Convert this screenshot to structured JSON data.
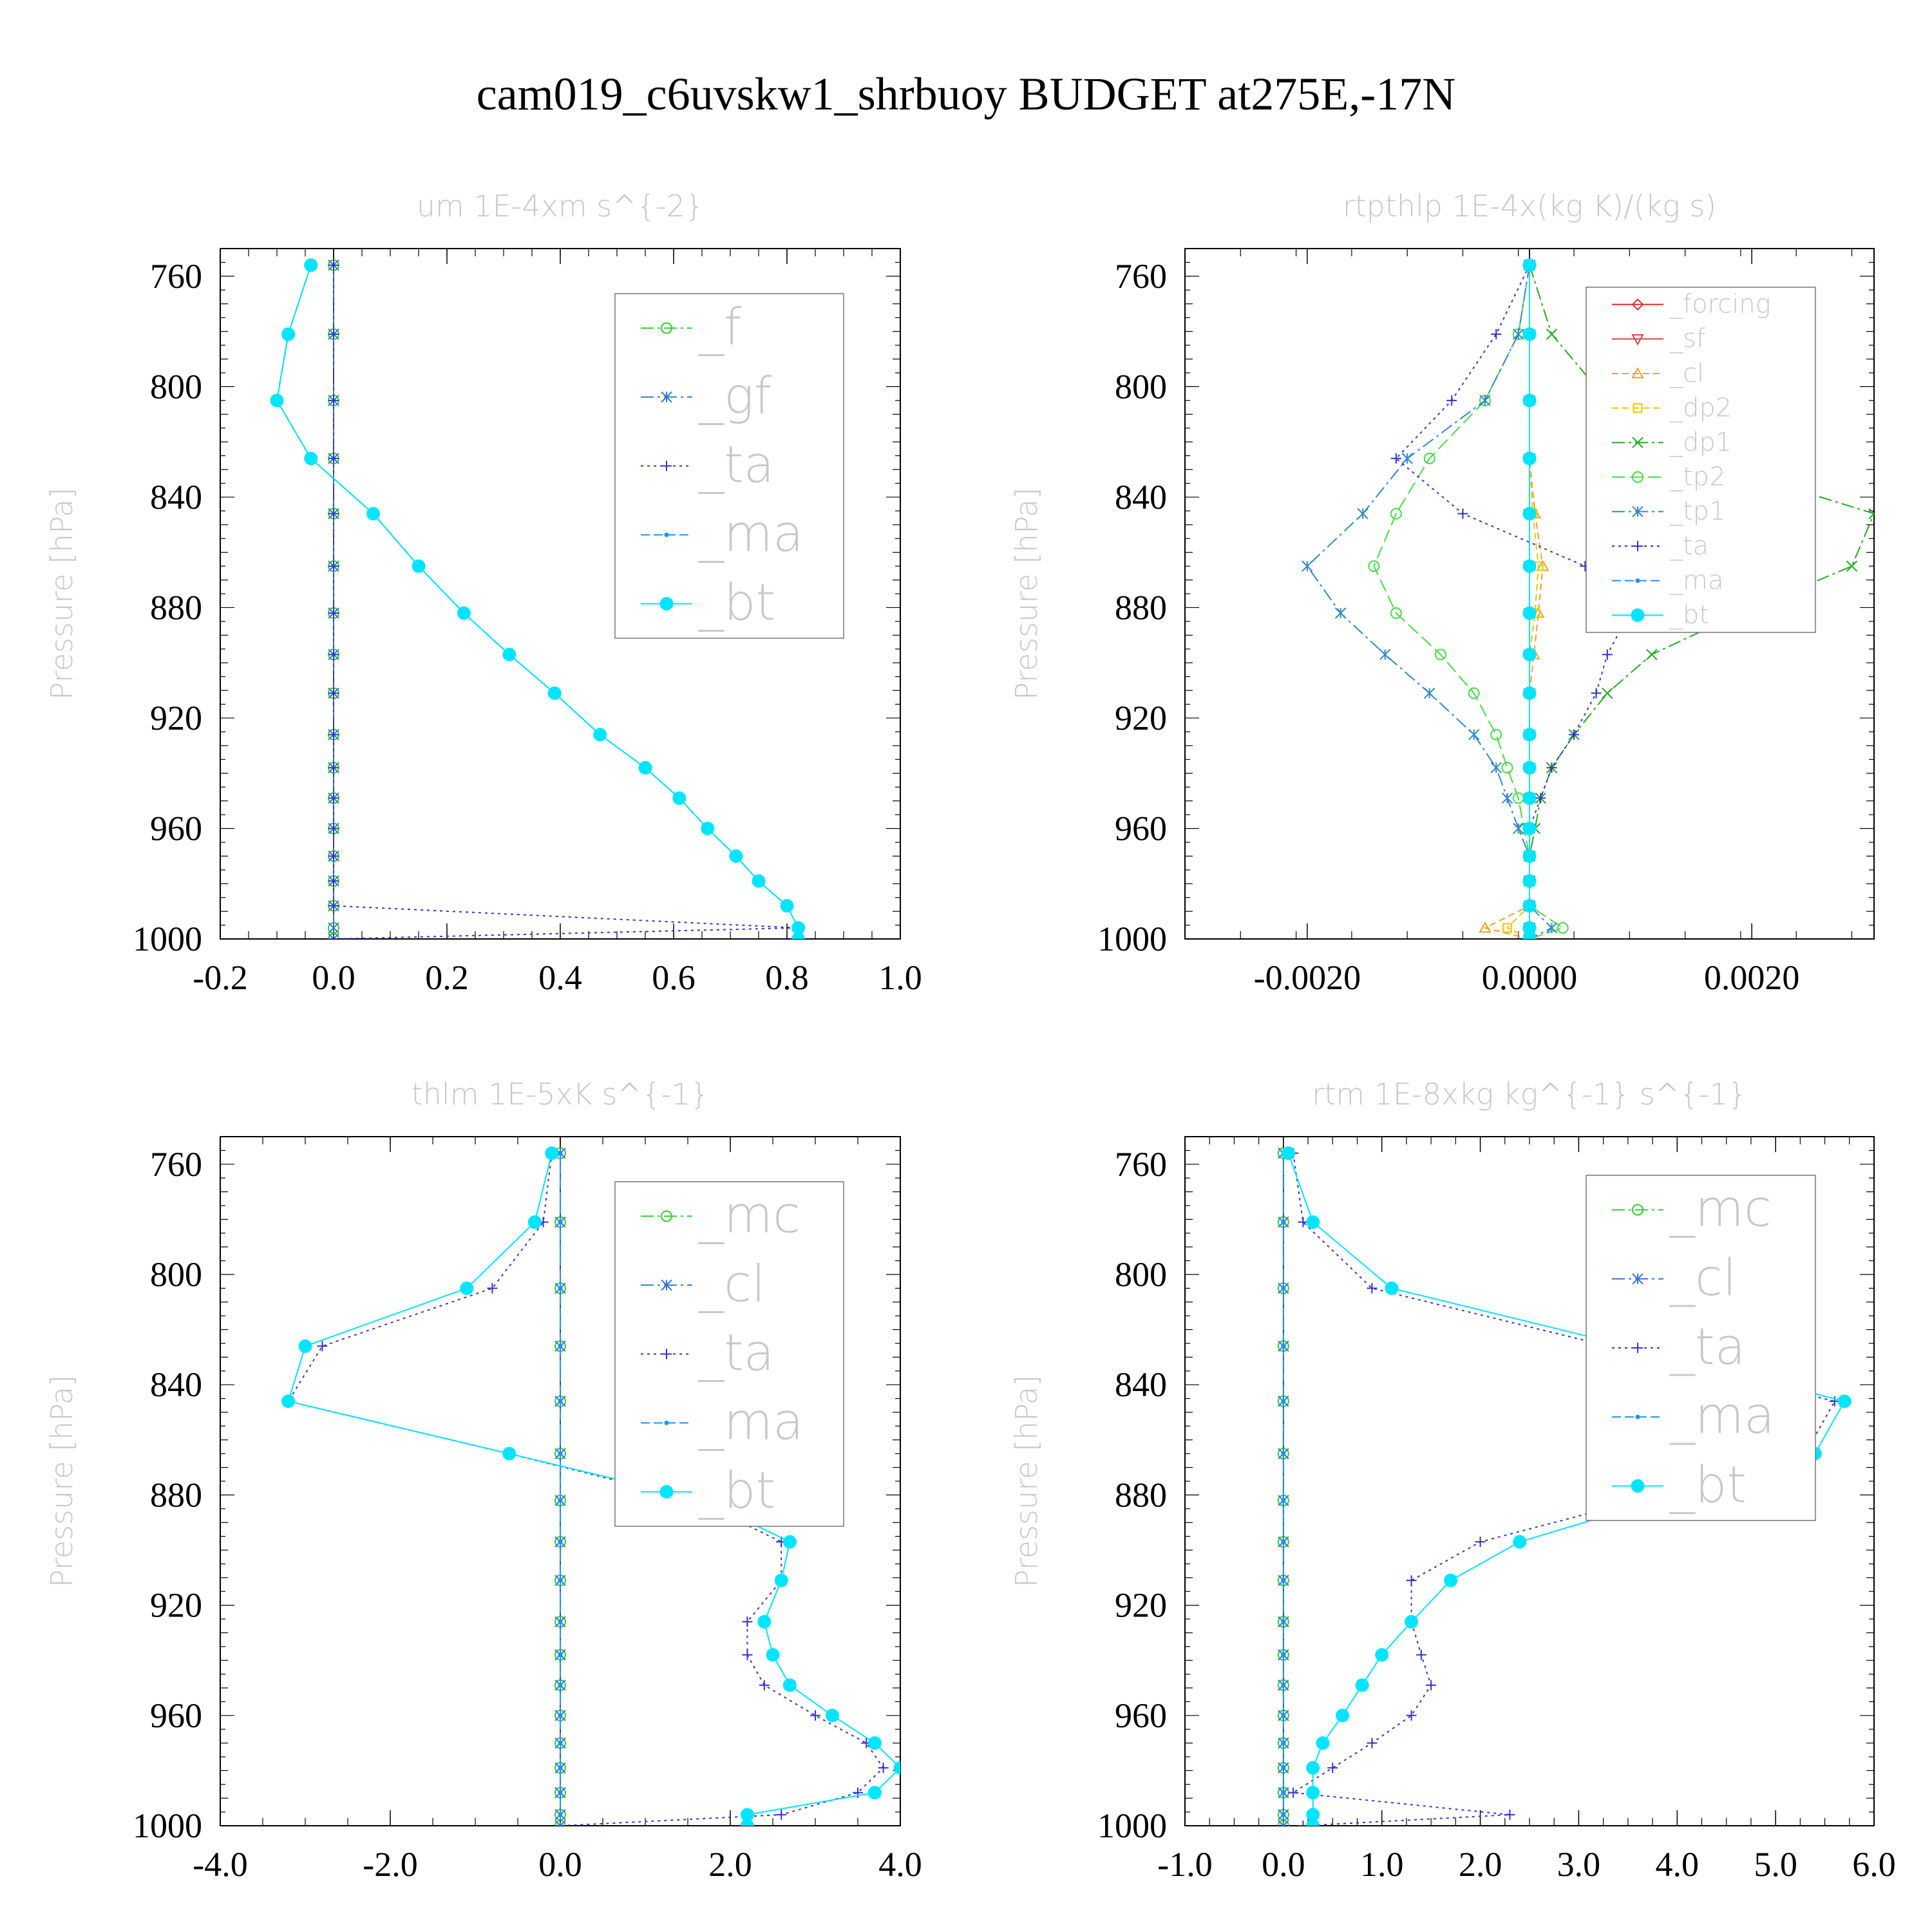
{
  "figure": {
    "title": "cam019_c6uvskw1_shrbuoy  BUDGET at275E,-17N"
  },
  "styles": {
    "_f": {
      "color": "#33cc33",
      "dash": "20,6,4,6",
      "marker": "circle"
    },
    "_gf": {
      "color": "#3377cc",
      "dash": "20,6,4,6",
      "marker": "asterisk"
    },
    "_ta": {
      "color": "#3333cc",
      "dash": "4,6",
      "marker": "plus"
    },
    "_ma": {
      "color": "#1e90ff",
      "dash": "14,6",
      "marker": "dot"
    },
    "_bt": {
      "color": "#00e5ff",
      "dash": "",
      "marker": "filled"
    },
    "_mc": {
      "color": "#33cc33",
      "dash": "20,6,4,6",
      "marker": "circle"
    },
    "_cl": {
      "color": "#3377cc",
      "dash": "20,6,4,6",
      "marker": "asterisk"
    },
    "_forcing": {
      "color": "#e03030",
      "dash": "",
      "marker": "diamond"
    },
    "_sf": {
      "color": "#e04040",
      "dash": "",
      "marker": "tridown"
    },
    "_cl_rtp": {
      "color": "#f0a030",
      "dash": "10,6",
      "marker": "triup"
    },
    "_dp2": {
      "color": "#e8c800",
      "dash": "10,6",
      "marker": "square"
    },
    "_dp1": {
      "color": "#22aa22",
      "dash": "20,6,4,6",
      "marker": "cross"
    },
    "_tp2": {
      "color": "#44dd44",
      "dash": "20,8",
      "marker": "circle"
    },
    "_tp1": {
      "color": "#3388cc",
      "dash": "20,6,4,6",
      "marker": "asterisk"
    }
  },
  "chart_data": [
    {
      "type": "line",
      "title": "um  1E-4xm s^{-2}",
      "ylabel": "Pressure [hPa]",
      "xlim": [
        -0.2,
        1.0
      ],
      "ylim": [
        1000,
        750
      ],
      "xticks": [
        "-0.2",
        "0.0",
        "0.2",
        "0.4",
        "0.6",
        "0.8",
        "1.0"
      ],
      "xtick_values": [
        -0.2,
        0.0,
        0.2,
        0.4,
        0.6,
        0.8,
        1.0
      ],
      "yticks": [
        "760",
        "800",
        "840",
        "880",
        "920",
        "960",
        "1000"
      ],
      "ytick_values": [
        760,
        800,
        840,
        880,
        920,
        960,
        1000
      ],
      "legend_position": "top-right",
      "legend_fontsize": 78,
      "legend": [
        "_f",
        "_gf",
        "_ta",
        "_ma",
        "_bt"
      ],
      "pressure": [
        756,
        781,
        805,
        826,
        846,
        865,
        882,
        897,
        911,
        926,
        938,
        949,
        960,
        970,
        979,
        988,
        996,
        1000
      ],
      "series": [
        {
          "name": "_f",
          "style": "_f",
          "values": [
            0,
            0,
            0,
            0,
            0,
            0,
            0,
            0,
            0,
            0,
            0,
            0,
            0,
            0,
            0,
            0,
            0,
            0
          ]
        },
        {
          "name": "_gf",
          "style": "_gf",
          "values": [
            0,
            0,
            0,
            0,
            0,
            0,
            0,
            0,
            0,
            0,
            0,
            0,
            0,
            0,
            0,
            0,
            0,
            0
          ]
        },
        {
          "name": "_ta",
          "style": "_ta",
          "values": [
            0,
            0,
            0,
            0,
            0,
            0,
            0,
            0,
            0,
            0,
            0,
            0,
            0,
            0,
            0,
            0,
            0.82,
            0
          ]
        },
        {
          "name": "_ma",
          "style": "_ma",
          "values": [
            -0.04,
            -0.08,
            -0.1,
            -0.04,
            0.07,
            0.15,
            0.23,
            0.31,
            0.39,
            0.47,
            0.55,
            0.61,
            0.66,
            0.71,
            0.75,
            0.8,
            0.82,
            0.82
          ]
        },
        {
          "name": "_bt",
          "style": "_bt",
          "values": [
            -0.04,
            -0.08,
            -0.1,
            -0.04,
            0.07,
            0.15,
            0.23,
            0.31,
            0.39,
            0.47,
            0.55,
            0.61,
            0.66,
            0.71,
            0.75,
            0.8,
            0.82,
            0.82
          ]
        }
      ]
    },
    {
      "type": "line",
      "title": "rtpthlp  1E-4x(kg K)/(kg s)",
      "ylabel": "Pressure [hPa]",
      "xlim": [
        -0.0031,
        0.0031
      ],
      "ylim": [
        1000,
        750
      ],
      "xticks": [
        "-0.0020",
        "0.0000",
        "0.0020"
      ],
      "xtick_values": [
        -0.002,
        0.0,
        0.002
      ],
      "yticks": [
        "760",
        "800",
        "840",
        "880",
        "920",
        "960",
        "1000"
      ],
      "ytick_values": [
        760,
        800,
        840,
        880,
        920,
        960,
        1000
      ],
      "legend_position": "top-right",
      "legend_fontsize": 40,
      "legend": [
        "_forcing",
        "_sf",
        "_cl",
        "_dp2",
        "_dp1",
        "_tp2",
        "_tp1",
        "_ta",
        "_ma",
        "_bt"
      ],
      "pressure": [
        756,
        781,
        805,
        826,
        846,
        865,
        882,
        897,
        911,
        926,
        938,
        949,
        960,
        970,
        979,
        988,
        996,
        1000
      ],
      "series": [
        {
          "name": "_forcing",
          "style": "_forcing",
          "values": [
            0,
            0,
            0,
            0,
            0,
            0,
            0,
            0,
            0,
            0,
            0,
            0,
            0,
            0,
            0,
            0,
            0,
            0
          ]
        },
        {
          "name": "_sf",
          "style": "_sf",
          "values": [
            0,
            0,
            0,
            0,
            0,
            0,
            0,
            0,
            0,
            0,
            0,
            0,
            0,
            0,
            0,
            0,
            0,
            0
          ]
        },
        {
          "name": "_cl",
          "style": "_cl_rtp",
          "values": [
            0,
            0,
            0,
            0,
            5e-05,
            0.00012,
            8e-05,
            4e-05,
            0,
            0,
            0,
            0,
            0,
            0,
            0,
            0,
            -0.0004,
            0
          ]
        },
        {
          "name": "_dp2",
          "style": "_dp2",
          "values": [
            0,
            0,
            0,
            0,
            3e-05,
            8e-05,
            5e-05,
            0,
            0,
            0,
            0,
            0,
            0,
            0,
            0,
            0,
            -0.0002,
            0
          ]
        },
        {
          "name": "_dp1",
          "style": "_dp1",
          "values": [
            0,
            0.0002,
            0.0007,
            0.0015,
            0.0031,
            0.0029,
            0.0019,
            0.0011,
            0.0007,
            0.0004,
            0.0002,
            0.0001,
            5e-05,
            0,
            0,
            0,
            0,
            0
          ]
        },
        {
          "name": "_tp2",
          "style": "_tp2",
          "values": [
            0,
            -0.0001,
            -0.0004,
            -0.0009,
            -0.0012,
            -0.0014,
            -0.0012,
            -0.0008,
            -0.0005,
            -0.0003,
            -0.0002,
            -0.0001,
            -5e-05,
            0,
            0,
            0,
            0.0003,
            0
          ]
        },
        {
          "name": "_tp1",
          "style": "_tp1",
          "values": [
            0,
            -0.0001,
            -0.0004,
            -0.0011,
            -0.0015,
            -0.002,
            -0.0017,
            -0.0013,
            -0.0009,
            -0.0005,
            -0.0003,
            -0.0002,
            -0.0001,
            0,
            0,
            0,
            0.0002,
            0
          ]
        },
        {
          "name": "_ta",
          "style": "_ta",
          "values": [
            0,
            -0.0003,
            -0.0007,
            -0.0012,
            -0.0006,
            0.0005,
            0.0009,
            0.0007,
            0.0006,
            0.0004,
            0.0002,
            0.0001,
            0,
            0,
            0,
            0,
            0,
            0
          ]
        },
        {
          "name": "_ma",
          "style": "_ma",
          "values": [
            0,
            0,
            0,
            0,
            0,
            0,
            0,
            0,
            0,
            0,
            0,
            0,
            0,
            0,
            0,
            0,
            0,
            0
          ]
        },
        {
          "name": "_bt",
          "style": "_bt",
          "values": [
            0,
            0,
            0,
            0,
            0,
            0,
            0,
            0,
            0,
            0,
            0,
            0,
            0,
            0,
            0,
            0,
            0,
            0
          ]
        }
      ]
    },
    {
      "type": "line",
      "title": "thlm  1E-5xK s^{-1}",
      "ylabel": "Pressure [hPa]",
      "xlim": [
        -4.0,
        4.0
      ],
      "ylim": [
        1000,
        750
      ],
      "xticks": [
        "-4.0",
        "-2.0",
        "0.0",
        "2.0",
        "4.0"
      ],
      "xtick_values": [
        -4.0,
        -2.0,
        0.0,
        2.0,
        4.0
      ],
      "yticks": [
        "760",
        "800",
        "840",
        "880",
        "920",
        "960",
        "1000"
      ],
      "ytick_values": [
        760,
        800,
        840,
        880,
        920,
        960,
        1000
      ],
      "legend_position": "top-right",
      "legend_fontsize": 78,
      "legend": [
        "_mc",
        "_cl",
        "_ta",
        "_ma",
        "_bt"
      ],
      "pressure": [
        756,
        781,
        805,
        826,
        846,
        865,
        882,
        897,
        911,
        926,
        938,
        949,
        960,
        970,
        979,
        988,
        996,
        1000
      ],
      "series": [
        {
          "name": "_mc",
          "style": "_mc",
          "values": [
            0,
            0,
            0,
            0,
            0,
            0,
            0,
            0,
            0,
            0,
            0,
            0,
            0,
            0,
            0,
            0,
            0,
            0
          ]
        },
        {
          "name": "_cl",
          "style": "_cl",
          "values": [
            0,
            0,
            0,
            0,
            0,
            0,
            0,
            0,
            0,
            0,
            0,
            0,
            0,
            0,
            0,
            0,
            0,
            0
          ]
        },
        {
          "name": "_ta",
          "style": "_ta",
          "values": [
            -0.1,
            -0.2,
            -0.8,
            -2.8,
            -3.2,
            -0.6,
            1.6,
            2.6,
            2.6,
            2.2,
            2.2,
            2.4,
            3.0,
            3.6,
            3.8,
            3.5,
            2.6,
            0
          ]
        },
        {
          "name": "_ma",
          "style": "_ma",
          "values": [
            0,
            0,
            0,
            0,
            0,
            0,
            0,
            0,
            0,
            0,
            0,
            0,
            0,
            0,
            0,
            0,
            0,
            0
          ]
        },
        {
          "name": "_bt",
          "style": "_bt",
          "values": [
            -0.1,
            -0.3,
            -1.1,
            -3.0,
            -3.2,
            -0.6,
            1.7,
            2.7,
            2.6,
            2.4,
            2.5,
            2.7,
            3.2,
            3.7,
            4.0,
            3.7,
            2.2,
            2.2
          ]
        }
      ]
    },
    {
      "type": "line",
      "title": "rtm  1E-8xkg kg^{-1} s^{-1}",
      "ylabel": "Pressure [hPa]",
      "xlim": [
        -1.0,
        6.0
      ],
      "ylim": [
        1000,
        750
      ],
      "xticks": [
        "-1.0",
        "0.0",
        "1.0",
        "2.0",
        "3.0",
        "4.0",
        "5.0",
        "6.0"
      ],
      "xtick_values": [
        -1.0,
        0.0,
        1.0,
        2.0,
        3.0,
        4.0,
        5.0,
        6.0
      ],
      "yticks": [
        "760",
        "800",
        "840",
        "880",
        "920",
        "960",
        "1000"
      ],
      "ytick_values": [
        760,
        800,
        840,
        880,
        920,
        960,
        1000
      ],
      "legend_position": "top-right",
      "legend_fontsize": 78,
      "legend": [
        "_mc",
        "_cl",
        "_ta",
        "_ma",
        "_bt"
      ],
      "pressure": [
        756,
        781,
        805,
        826,
        846,
        865,
        882,
        897,
        911,
        926,
        938,
        949,
        960,
        970,
        979,
        988,
        996,
        1000
      ],
      "series": [
        {
          "name": "_mc",
          "style": "_mc",
          "values": [
            0,
            0,
            0,
            0,
            0,
            0,
            0,
            0,
            0,
            0,
            0,
            0,
            0,
            0,
            0,
            0,
            0,
            0
          ]
        },
        {
          "name": "_cl",
          "style": "_cl",
          "values": [
            0,
            0,
            0,
            0,
            0,
            0,
            0,
            0,
            0,
            0,
            0,
            0,
            0,
            0,
            0,
            0,
            0,
            0
          ]
        },
        {
          "name": "_ta",
          "style": "_ta",
          "values": [
            0.1,
            0.2,
            0.9,
            3.3,
            5.6,
            5.3,
            3.6,
            2.0,
            1.3,
            1.3,
            1.4,
            1.5,
            1.3,
            0.9,
            0.5,
            0.1,
            2.3,
            0.2
          ]
        },
        {
          "name": "_ma",
          "style": "_ma",
          "values": [
            0,
            0,
            0,
            0,
            0,
            0,
            0,
            0,
            0,
            0,
            0,
            0,
            0,
            0,
            0,
            0,
            0,
            0
          ]
        },
        {
          "name": "_bt",
          "style": "_bt",
          "values": [
            0.05,
            0.3,
            1.1,
            3.5,
            5.7,
            5.4,
            3.8,
            2.4,
            1.7,
            1.3,
            1.0,
            0.8,
            0.6,
            0.4,
            0.3,
            0.3,
            0.3,
            0.3
          ]
        }
      ]
    }
  ]
}
